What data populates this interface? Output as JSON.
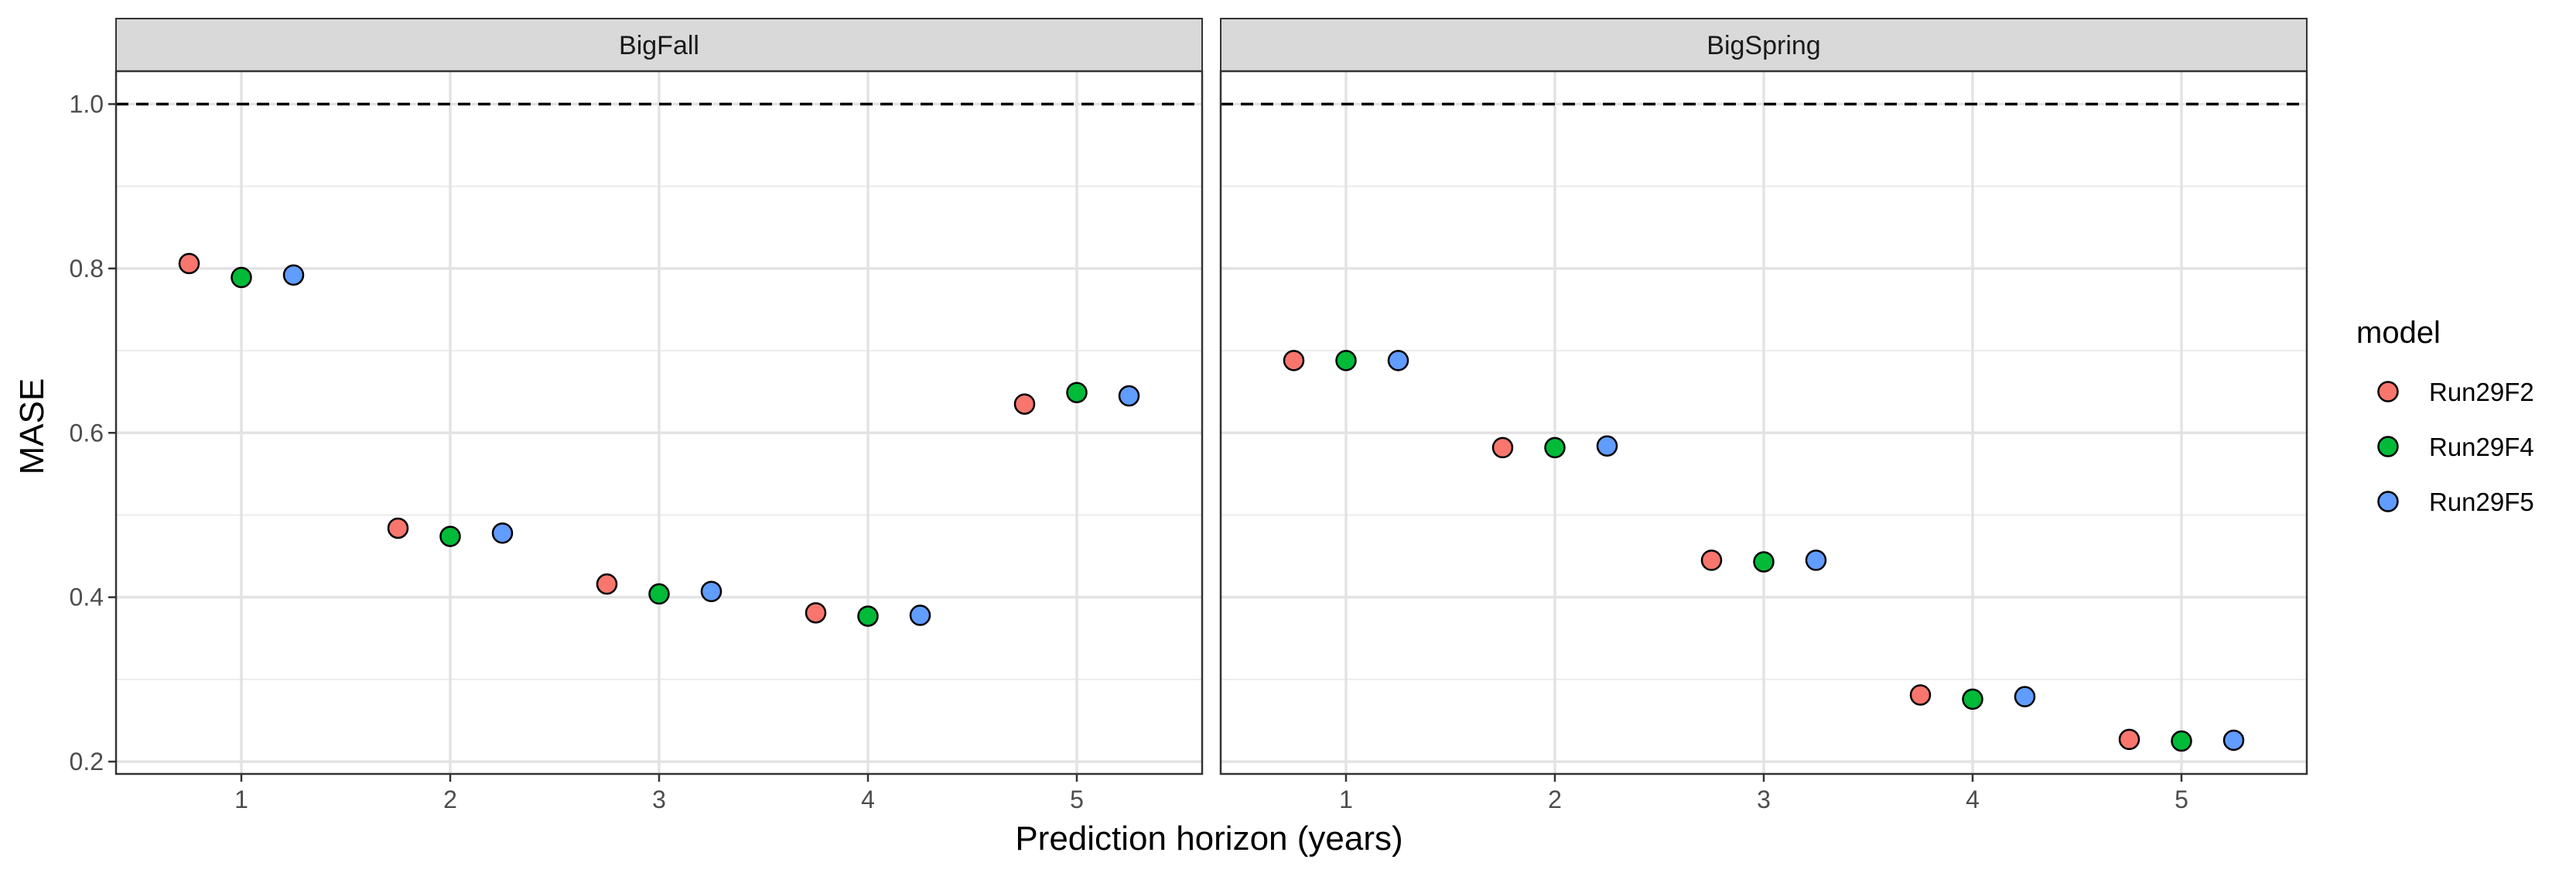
{
  "chart_data": {
    "type": "scatter",
    "xlabel": "Prediction horizon (years)",
    "ylabel": "MASE",
    "xlim": [
      0.4,
      5.6
    ],
    "ylim": [
      0.185,
      1.04
    ],
    "x_ticks": [
      "1",
      "2",
      "3",
      "4",
      "5"
    ],
    "y_ticks": [
      "0.2",
      "0.4",
      "0.6",
      "0.8",
      "1.0"
    ],
    "reference_line": {
      "y": 1.0,
      "style": "dashed"
    },
    "grid": true,
    "legend": {
      "title": "model",
      "position": "right"
    },
    "series": [
      {
        "name": "Run29F2",
        "color": "#F8766D",
        "dodge": -0.25
      },
      {
        "name": "Run29F4",
        "color": "#00BA38",
        "dodge": 0
      },
      {
        "name": "Run29F5",
        "color": "#619CFF",
        "dodge": 0.25
      }
    ],
    "panels": [
      {
        "title": "BigFall",
        "values": {
          "Run29F2": [
            0.806,
            0.484,
            0.416,
            0.381,
            0.635
          ],
          "Run29F4": [
            0.789,
            0.474,
            0.404,
            0.377,
            0.649
          ],
          "Run29F5": [
            0.792,
            0.478,
            0.407,
            0.378,
            0.645
          ]
        }
      },
      {
        "title": "BigSpring",
        "values": {
          "Run29F2": [
            0.688,
            0.582,
            0.445,
            0.281,
            0.227
          ],
          "Run29F4": [
            0.688,
            0.582,
            0.443,
            0.276,
            0.225
          ],
          "Run29F5": [
            0.688,
            0.584,
            0.445,
            0.279,
            0.226
          ]
        }
      }
    ]
  }
}
